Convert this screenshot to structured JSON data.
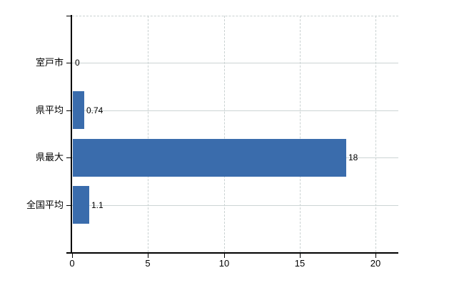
{
  "chart_data": {
    "type": "bar",
    "orientation": "horizontal",
    "title": "",
    "xlabel": "",
    "ylabel": "",
    "categories": [
      "室戸市",
      "県平均",
      "県最大",
      "全国平均"
    ],
    "values": [
      0,
      0.74,
      18,
      1.1
    ],
    "value_labels": [
      "0",
      "0.74",
      "18",
      "1.1"
    ],
    "x_ticks": [
      0,
      5,
      10,
      15,
      20
    ],
    "x_tick_labels": [
      "0",
      "5",
      "10",
      "15",
      "20"
    ],
    "xlim": [
      0,
      21.5
    ],
    "grid": true,
    "legend": false,
    "colors": {
      "bar": "#3a6cac",
      "gridline": "#ccd4d4",
      "axis": "#000000",
      "text": "#000000",
      "background": "#ffffff"
    }
  }
}
